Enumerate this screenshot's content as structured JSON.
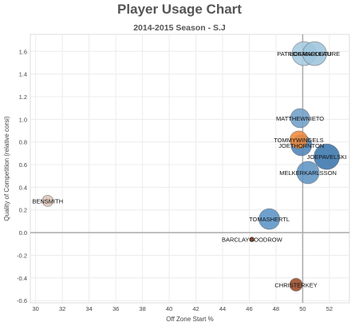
{
  "chart_data": {
    "type": "scatter",
    "title": "Player Usage Chart",
    "subtitle": "2014-2015 Season - S.J",
    "xlabel": "Off Zone Start %",
    "ylabel": "Quality of Competition (relative corsi)",
    "xlim": [
      29.6,
      53.5
    ],
    "ylim": [
      -0.62,
      1.75
    ],
    "xticks": [
      "30",
      "32",
      "34",
      "36",
      "38",
      "40",
      "42",
      "44",
      "46",
      "48",
      "50",
      "52"
    ],
    "yticks": [
      "-0.6",
      "-0.4",
      "-0.2",
      "0.0",
      "0.2",
      "0.4",
      "0.6",
      "0.8",
      "1.0",
      "1.2",
      "1.4",
      "1.6"
    ],
    "reference_lines": {
      "x": 50,
      "y": 0
    },
    "grid": true,
    "points": [
      {
        "label": "BENSMITH",
        "x": 30.9,
        "y": 0.28,
        "size": 7,
        "color": "#dcc4b6"
      },
      {
        "label": "PATRICKMARLEAU",
        "x": 50.1,
        "y": 1.58,
        "size": 15,
        "color": "#a6cbe0"
      },
      {
        "label": "LOGANCOUTURE",
        "x": 50.9,
        "y": 1.58,
        "size": 15,
        "color": "#9ec5dd"
      },
      {
        "label": "MATTHEWNIETO",
        "x": 49.8,
        "y": 1.01,
        "size": 12,
        "color": "#6f9fc8"
      },
      {
        "label": "TOMMYWINGELS",
        "x": 49.7,
        "y": 0.82,
        "size": 11,
        "color": "#f08a3c"
      },
      {
        "label": "JOETHORNTON",
        "x": 49.9,
        "y": 0.77,
        "size": 13,
        "color": "#4e84b8"
      },
      {
        "label": "JOEPAVELSKI",
        "x": 51.8,
        "y": 0.67,
        "size": 16,
        "color": "#3a75ac"
      },
      {
        "label": "MELKERKARLSSON",
        "x": 50.4,
        "y": 0.53,
        "size": 14,
        "color": "#5f95c4"
      },
      {
        "label": "TOMASHERTL",
        "x": 47.5,
        "y": 0.12,
        "size": 13,
        "color": "#5b93c6"
      },
      {
        "label": "BARCLAYGOODROW",
        "x": 46.2,
        "y": -0.06,
        "size": 3,
        "color": "#8a3a1e"
      },
      {
        "label": "CHRISTERKEY",
        "x": 49.5,
        "y": -0.46,
        "size": 8,
        "color": "#9b4a28"
      }
    ]
  }
}
